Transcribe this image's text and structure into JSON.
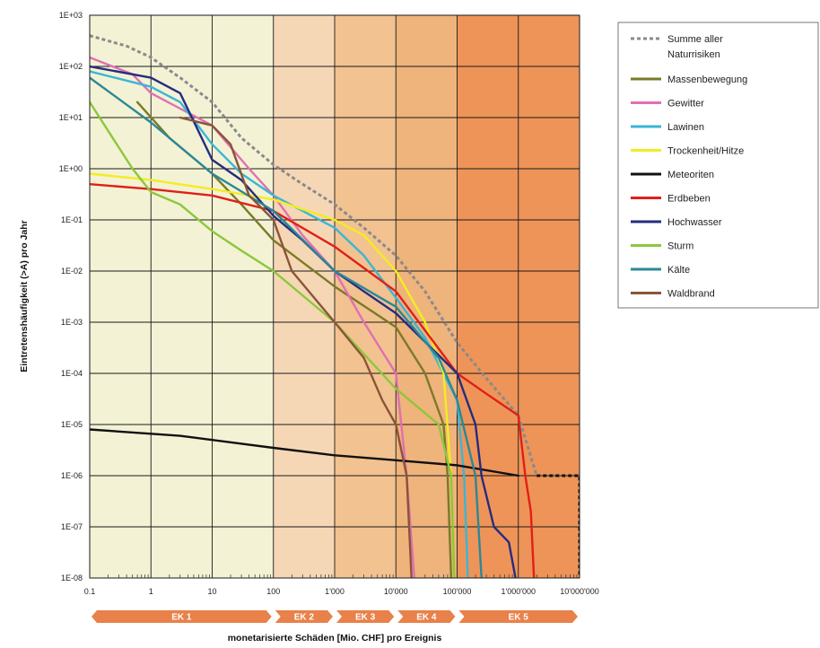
{
  "chart_data": {
    "type": "line",
    "xlabel": "monetarisierte Schäden [Mio. CHF] pro Ereignis",
    "ylabel": "Eintretenshäufigkeit (>A) pro Jahr",
    "x_scale": "log",
    "y_scale": "log",
    "xlim": [
      0.1,
      10000000
    ],
    "ylim": [
      1e-08,
      1000
    ],
    "grid": true,
    "legend_position": "right",
    "x_ticks": [
      {
        "value": 0.1,
        "label": "0.1"
      },
      {
        "value": 1,
        "label": "1"
      },
      {
        "value": 10,
        "label": "10"
      },
      {
        "value": 100,
        "label": "100"
      },
      {
        "value": 1000,
        "label": "1'000"
      },
      {
        "value": 10000,
        "label": "10'000"
      },
      {
        "value": 100000,
        "label": "100'000"
      },
      {
        "value": 1000000,
        "label": "1'000'000"
      },
      {
        "value": 10000000,
        "label": "10'000'000"
      }
    ],
    "y_ticks": [
      {
        "value": 1000,
        "label": "1E+03"
      },
      {
        "value": 100,
        "label": "1E+02"
      },
      {
        "value": 10,
        "label": "1E+01"
      },
      {
        "value": 1,
        "label": "1E+00"
      },
      {
        "value": 0.1,
        "label": "1E-01"
      },
      {
        "value": 0.01,
        "label": "1E-02"
      },
      {
        "value": 0.001,
        "label": "1E-03"
      },
      {
        "value": 0.0001,
        "label": "1E-04"
      },
      {
        "value": 1e-05,
        "label": "1E-05"
      },
      {
        "value": 1e-06,
        "label": "1E-06"
      },
      {
        "value": 1e-07,
        "label": "1E-07"
      },
      {
        "value": 1e-08,
        "label": "1E-08"
      }
    ],
    "zones": [
      {
        "label": "EK 1",
        "x_from": 0.1,
        "x_to": 100,
        "color": "#f3f2d4"
      },
      {
        "label": "EK 2",
        "x_from": 100,
        "x_to": 1000,
        "color": "#f6d7b5"
      },
      {
        "label": "EK 3",
        "x_from": 1000,
        "x_to": 10000,
        "color": "#f2c290"
      },
      {
        "label": "EK 4",
        "x_from": 10000,
        "x_to": 100000,
        "color": "#efb37c"
      },
      {
        "label": "EK 5",
        "x_from": 100000,
        "x_to": 10000000,
        "color": "#ee9458"
      }
    ],
    "zone_bar_color": "#e8814a",
    "series": [
      {
        "name": "Summe aller Naturrisiken",
        "color": "#8a8a8a",
        "dashed": true,
        "points": [
          [
            0.1,
            400
          ],
          [
            0.4,
            250
          ],
          [
            1,
            150
          ],
          [
            3,
            60
          ],
          [
            10,
            20
          ],
          [
            30,
            4
          ],
          [
            100,
            1.2
          ],
          [
            300,
            0.5
          ],
          [
            1000,
            0.2
          ],
          [
            3000,
            0.07
          ],
          [
            10000,
            0.02
          ],
          [
            30000,
            0.004
          ],
          [
            100000,
            0.0004
          ],
          [
            300000,
            8e-05
          ],
          [
            1000000,
            1.5e-05
          ],
          [
            1500000,
            3e-06
          ],
          [
            2000000,
            1e-06
          ],
          [
            10000000,
            1e-06
          ]
        ]
      },
      {
        "name": "Summe aller Naturrisiken",
        "color": "#111111",
        "dashed": true,
        "in_legend": false,
        "points": [
          [
            2000000,
            1e-06
          ],
          [
            10000000,
            1e-06
          ],
          [
            10000000,
            1e-08
          ]
        ]
      },
      {
        "name": "Massenbewegung",
        "color": "#7a7a28",
        "points": [
          [
            0.6,
            20
          ],
          [
            2,
            4
          ],
          [
            10,
            0.8
          ],
          [
            30,
            0.2
          ],
          [
            100,
            0.04
          ],
          [
            1000,
            0.005
          ],
          [
            10000,
            0.0008
          ],
          [
            30000,
            0.0001
          ],
          [
            60000,
            1e-05
          ],
          [
            70000,
            1e-06
          ],
          [
            80000,
            1e-08
          ]
        ]
      },
      {
        "name": "Gewitter",
        "color": "#e070b0",
        "points": [
          [
            0.1,
            150
          ],
          [
            0.5,
            70
          ],
          [
            1,
            30
          ],
          [
            3,
            15
          ],
          [
            10,
            7
          ],
          [
            40,
            1
          ],
          [
            100,
            0.3
          ],
          [
            300,
            0.05
          ],
          [
            1000,
            0.01
          ],
          [
            3000,
            0.001
          ],
          [
            10000,
            0.0001
          ],
          [
            15000,
            1e-06
          ],
          [
            20000,
            1e-08
          ]
        ]
      },
      {
        "name": "Lawinen",
        "color": "#3ab5d8",
        "points": [
          [
            0.1,
            80
          ],
          [
            1,
            40
          ],
          [
            3,
            20
          ],
          [
            10,
            3
          ],
          [
            30,
            0.8
          ],
          [
            100,
            0.3
          ],
          [
            300,
            0.15
          ],
          [
            1000,
            0.07
          ],
          [
            3000,
            0.02
          ],
          [
            10000,
            0.003
          ],
          [
            30000,
            0.0005
          ],
          [
            100000,
            3e-05
          ],
          [
            130000,
            1e-06
          ],
          [
            150000,
            1e-08
          ]
        ]
      },
      {
        "name": "Trockenheit/Hitze",
        "color": "#f4ec22",
        "points": [
          [
            0.1,
            0.8
          ],
          [
            1,
            0.6
          ],
          [
            10,
            0.4
          ],
          [
            100,
            0.25
          ],
          [
            1000,
            0.1
          ],
          [
            3000,
            0.05
          ],
          [
            10000,
            0.01
          ],
          [
            30000,
            0.001
          ],
          [
            60000,
            0.0001
          ],
          [
            80000,
            1e-06
          ],
          [
            90000,
            1e-08
          ]
        ]
      },
      {
        "name": "Meteoriten",
        "color": "#111111",
        "points": [
          [
            0.1,
            8e-06
          ],
          [
            3,
            6e-06
          ],
          [
            100,
            3.5e-06
          ],
          [
            1000,
            2.5e-06
          ],
          [
            10000,
            2e-06
          ],
          [
            100000,
            1.6e-06
          ],
          [
            1000000,
            1e-06
          ]
        ]
      },
      {
        "name": "Erdbeben",
        "color": "#e02018",
        "points": [
          [
            0.1,
            0.5
          ],
          [
            1,
            0.4
          ],
          [
            10,
            0.3
          ],
          [
            100,
            0.15
          ],
          [
            1000,
            0.03
          ],
          [
            10000,
            0.004
          ],
          [
            100000,
            0.0001
          ],
          [
            300000,
            4e-05
          ],
          [
            1000000,
            1.5e-05
          ],
          [
            1300000,
            1e-06
          ],
          [
            1600000,
            2e-07
          ],
          [
            1800000,
            1e-08
          ]
        ]
      },
      {
        "name": "Hochwasser",
        "color": "#262c80",
        "points": [
          [
            0.1,
            100
          ],
          [
            1,
            60
          ],
          [
            3,
            30
          ],
          [
            10,
            1.5
          ],
          [
            30,
            0.6
          ],
          [
            100,
            0.12
          ],
          [
            300,
            0.04
          ],
          [
            1000,
            0.01
          ],
          [
            3000,
            0.004
          ],
          [
            10000,
            0.0015
          ],
          [
            100000,
            0.0001
          ],
          [
            200000,
            1e-05
          ],
          [
            250000,
            1e-06
          ],
          [
            400000,
            1e-07
          ],
          [
            700000,
            5e-08
          ],
          [
            900000,
            1e-08
          ]
        ]
      },
      {
        "name": "Sturm",
        "color": "#8bc83a",
        "points": [
          [
            0.1,
            20
          ],
          [
            0.5,
            1
          ],
          [
            1,
            0.35
          ],
          [
            3,
            0.2
          ],
          [
            10,
            0.06
          ],
          [
            30,
            0.025
          ],
          [
            100,
            0.01
          ],
          [
            1000,
            0.001
          ],
          [
            10000,
            5e-05
          ],
          [
            50000,
            1e-05
          ],
          [
            80000,
            1e-06
          ],
          [
            90000,
            1e-08
          ]
        ]
      },
      {
        "name": "Kälte",
        "color": "#2a8898",
        "points": [
          [
            0.1,
            60
          ],
          [
            1,
            8
          ],
          [
            10,
            0.8
          ],
          [
            100,
            0.15
          ],
          [
            1000,
            0.01
          ],
          [
            10000,
            0.002
          ],
          [
            50000,
            0.0002
          ],
          [
            100000,
            3e-05
          ],
          [
            200000,
            1e-06
          ],
          [
            250000,
            1e-08
          ]
        ]
      },
      {
        "name": "Waldbrand",
        "color": "#8a5438",
        "points": [
          [
            3,
            10
          ],
          [
            10,
            7
          ],
          [
            20,
            3
          ],
          [
            40,
            0.3
          ],
          [
            100,
            0.1
          ],
          [
            200,
            0.01
          ],
          [
            1000,
            0.001
          ],
          [
            3000,
            0.0002
          ],
          [
            6000,
            3e-05
          ],
          [
            10000,
            1e-05
          ],
          [
            15000,
            1e-06
          ],
          [
            18000,
            1e-08
          ]
        ]
      }
    ]
  }
}
